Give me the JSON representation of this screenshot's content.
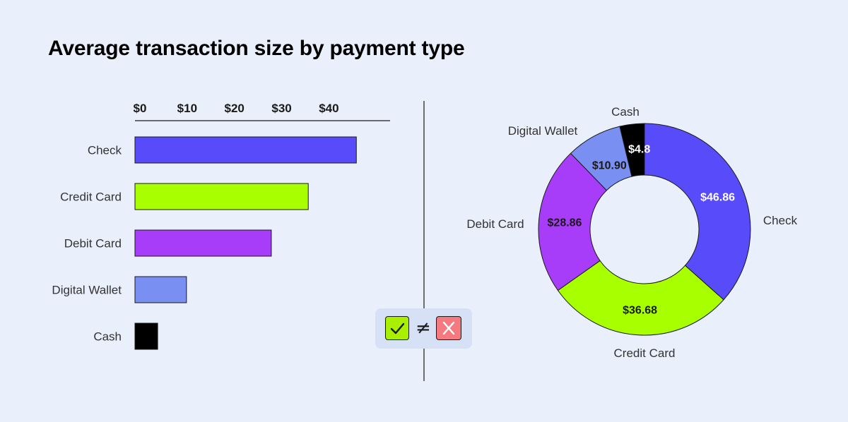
{
  "title": "Average transaction size by payment type",
  "chart_data": [
    {
      "type": "bar",
      "orientation": "horizontal",
      "categories": [
        "Check",
        "Credit Card",
        "Debit Card",
        "Digital Wallet",
        "Cash"
      ],
      "values": [
        46.86,
        36.68,
        28.86,
        10.9,
        4.8
      ],
      "colors": [
        "#584cfa",
        "#a8ff00",
        "#a73df9",
        "#7a8ff2",
        "#000000"
      ],
      "x_ticks": [
        "$0",
        "$10",
        "$20",
        "$30",
        "$40"
      ],
      "x_axis_position": "top",
      "xlim": [
        0,
        55
      ]
    },
    {
      "type": "pie",
      "style": "donut",
      "categories": [
        "Check",
        "Credit Card",
        "Debit Card",
        "Digital Wallet",
        "Cash"
      ],
      "values": [
        46.86,
        36.68,
        28.86,
        10.9,
        4.8
      ],
      "value_labels": [
        "$46.86",
        "$36.68",
        "$28.86",
        "$10.90",
        "$4.8"
      ],
      "colors": [
        "#584cfa",
        "#a8ff00",
        "#a73df9",
        "#7a8ff2",
        "#000000"
      ],
      "label_colors": [
        "#ffffff",
        "#1a1a1a",
        "#1a1a1a",
        "#1a1a1a",
        "#ffffff"
      ]
    }
  ],
  "badge": {
    "left_icon": "check-icon",
    "operator": "≠",
    "right_icon": "x-icon",
    "colors": {
      "check": "#a8f000",
      "x": "#f47a80"
    }
  }
}
